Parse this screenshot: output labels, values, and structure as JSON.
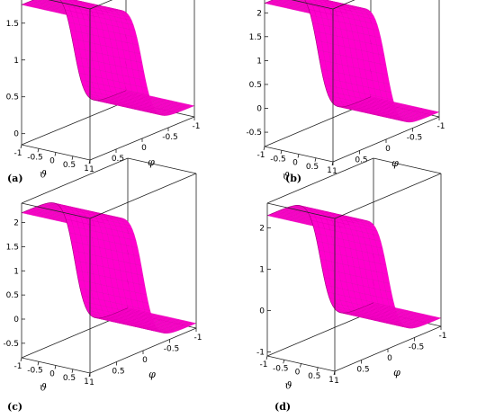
{
  "chart_data": [
    {
      "type": "surface3d",
      "panel_label": "(a)",
      "xlabel": "ϑ",
      "ylabel": "φ",
      "x_ticks": [
        "-1",
        "-0.5",
        "0",
        "0.5",
        "1"
      ],
      "y_ticks": [
        "1",
        "0.5",
        "0",
        "-0.5",
        "-1"
      ],
      "z_ticks": [
        "0",
        "0.5",
        "1",
        "1.5"
      ],
      "xlim": [
        -1,
        1
      ],
      "ylim": [
        -1,
        1
      ],
      "zlim": [
        -0.15,
        1.9
      ],
      "surface": {
        "high": 1.75,
        "low": 0,
        "transition_center": 0,
        "transition_halfwidth": 0.35
      },
      "surface_color": "#ff00cc",
      "grid": false
    },
    {
      "type": "surface3d",
      "panel_label": "(b)",
      "xlabel": "ϑ",
      "ylabel": "φ",
      "x_ticks": [
        "-1",
        "-0.5",
        "0",
        "0.5",
        "1"
      ],
      "y_ticks": [
        "1",
        "0.5",
        "0",
        "-0.5",
        "-1"
      ],
      "z_ticks": [
        "-0.5",
        "0",
        "0.5",
        "1",
        "1.5",
        "2"
      ],
      "xlim": [
        -1,
        1
      ],
      "ylim": [
        -1,
        1
      ],
      "zlim": [
        -0.8,
        2.4
      ],
      "surface": {
        "high": 2.2,
        "low": -0.7,
        "transition_center": 0,
        "transition_halfwidth": 0.35
      },
      "surface_color": "#ff00cc",
      "grid": false
    },
    {
      "type": "surface3d",
      "panel_label": "(c)",
      "xlabel": "ϑ",
      "ylabel": "φ",
      "x_ticks": [
        "-1",
        "-0.5",
        "0",
        "0.5",
        "1"
      ],
      "y_ticks": [
        "1",
        "0.5",
        "0",
        "-0.5",
        "-1"
      ],
      "z_ticks": [
        "-0.5",
        "0",
        "0.5",
        "1",
        "1.5",
        "2"
      ],
      "xlim": [
        -1,
        1
      ],
      "ylim": [
        -1,
        1
      ],
      "zlim": [
        -0.8,
        2.4
      ],
      "surface": {
        "high": 2.2,
        "low": -0.7,
        "transition_center": 0,
        "transition_halfwidth": 0.35
      },
      "surface_color": "#ff00cc",
      "grid": false
    },
    {
      "type": "surface3d",
      "panel_label": "(d)",
      "xlabel": "ϑ",
      "ylabel": "φ",
      "x_ticks": [
        "-1",
        "-0.5",
        "0",
        "0.5",
        "1"
      ],
      "y_ticks": [
        "1",
        "0.5",
        "0",
        "-0.5",
        "-1"
      ],
      "z_ticks": [
        "-1",
        "0",
        "1",
        "2"
      ],
      "xlim": [
        -1,
        1
      ],
      "ylim": [
        -1,
        1
      ],
      "zlim": [
        -1.1,
        2.6
      ],
      "surface": {
        "high": 2.3,
        "low": -0.9,
        "transition_center": 0,
        "transition_halfwidth": 0.35
      },
      "surface_color": "#ff00cc",
      "grid": false
    }
  ]
}
